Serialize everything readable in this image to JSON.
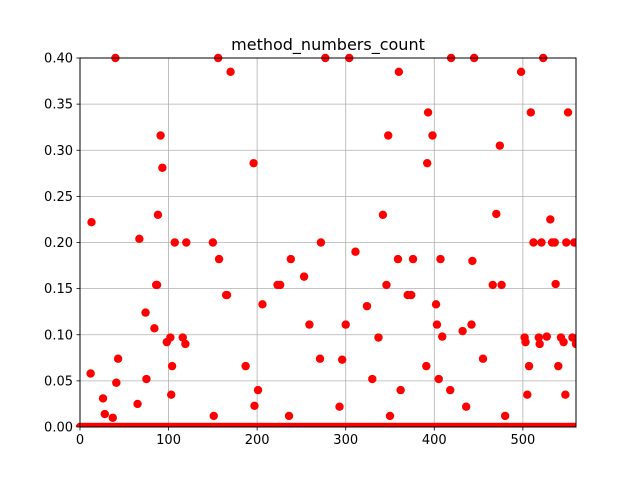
{
  "chart_data": {
    "type": "scatter",
    "title": "method_numbers_count",
    "xlabel": "",
    "ylabel": "",
    "xlim": [
      0,
      560
    ],
    "ylim": [
      0,
      0.4
    ],
    "xticks": [
      0,
      100,
      200,
      300,
      400,
      500
    ],
    "yticks": [
      0.0,
      0.05,
      0.1,
      0.15,
      0.2,
      0.25,
      0.3,
      0.35,
      0.4
    ],
    "xtick_labels": [
      "0",
      "100",
      "200",
      "300",
      "400",
      "500"
    ],
    "ytick_labels": [
      "0.00",
      "0.05",
      "0.10",
      "0.15",
      "0.20",
      "0.25",
      "0.30",
      "0.35",
      "0.40"
    ],
    "grid": true,
    "marker_color": "#ff0000",
    "series": [
      {
        "name": "method_numbers_count",
        "points": [
          [
            12,
            0.058
          ],
          [
            13,
            0.222
          ],
          [
            26,
            0.031
          ],
          [
            28,
            0.014
          ],
          [
            37,
            0.01
          ],
          [
            40,
            0.4
          ],
          [
            41,
            0.048
          ],
          [
            43,
            0.074
          ],
          [
            65,
            0.025
          ],
          [
            67,
            0.204
          ],
          [
            74,
            0.124
          ],
          [
            75,
            0.052
          ],
          [
            84,
            0.107
          ],
          [
            86,
            0.154
          ],
          [
            87,
            0.154
          ],
          [
            88,
            0.23
          ],
          [
            91,
            0.316
          ],
          [
            93,
            0.281
          ],
          [
            98,
            0.092
          ],
          [
            102,
            0.097
          ],
          [
            103,
            0.035
          ],
          [
            104,
            0.066
          ],
          [
            107,
            0.2
          ],
          [
            116,
            0.097
          ],
          [
            119,
            0.09
          ],
          [
            120,
            0.2
          ],
          [
            150,
            0.2
          ],
          [
            151,
            0.012
          ],
          [
            156,
            0.4
          ],
          [
            157,
            0.182
          ],
          [
            165,
            0.143
          ],
          [
            166,
            0.143
          ],
          [
            170,
            0.385
          ],
          [
            187,
            0.066
          ],
          [
            196,
            0.286
          ],
          [
            197,
            0.023
          ],
          [
            201,
            0.04
          ],
          [
            206,
            0.133
          ],
          [
            223,
            0.154
          ],
          [
            226,
            0.154
          ],
          [
            236,
            0.012
          ],
          [
            238,
            0.182
          ],
          [
            253,
            0.163
          ],
          [
            259,
            0.111
          ],
          [
            271,
            0.074
          ],
          [
            272,
            0.2
          ],
          [
            277,
            0.4
          ],
          [
            293,
            0.022
          ],
          [
            296,
            0.073
          ],
          [
            300,
            0.111
          ],
          [
            304,
            0.4
          ],
          [
            311,
            0.19
          ],
          [
            324,
            0.131
          ],
          [
            330,
            0.052
          ],
          [
            337,
            0.097
          ],
          [
            342,
            0.23
          ],
          [
            346,
            0.154
          ],
          [
            348,
            0.316
          ],
          [
            350,
            0.012
          ],
          [
            359,
            0.182
          ],
          [
            360,
            0.385
          ],
          [
            362,
            0.04
          ],
          [
            370,
            0.143
          ],
          [
            374,
            0.143
          ],
          [
            376,
            0.182
          ],
          [
            391,
            0.066
          ],
          [
            392,
            0.286
          ],
          [
            393,
            0.341
          ],
          [
            398,
            0.316
          ],
          [
            402,
            0.133
          ],
          [
            403,
            0.111
          ],
          [
            405,
            0.052
          ],
          [
            407,
            0.182
          ],
          [
            409,
            0.098
          ],
          [
            418,
            0.04
          ],
          [
            419,
            0.4
          ],
          [
            432,
            0.104
          ],
          [
            436,
            0.022
          ],
          [
            442,
            0.111
          ],
          [
            443,
            0.18
          ],
          [
            445,
            0.4
          ],
          [
            455,
            0.074
          ],
          [
            466,
            0.154
          ],
          [
            470,
            0.231
          ],
          [
            474,
            0.305
          ],
          [
            476,
            0.154
          ],
          [
            480,
            0.012
          ],
          [
            498,
            0.385
          ],
          [
            502,
            0.097
          ],
          [
            503,
            0.092
          ],
          [
            505,
            0.035
          ],
          [
            507,
            0.066
          ],
          [
            509,
            0.341
          ],
          [
            512,
            0.2
          ],
          [
            518,
            0.097
          ],
          [
            519,
            0.09
          ],
          [
            521,
            0.2
          ],
          [
            523,
            0.4
          ],
          [
            527,
            0.098
          ],
          [
            531,
            0.225
          ],
          [
            533,
            0.2
          ],
          [
            536,
            0.2
          ],
          [
            537,
            0.155
          ],
          [
            540,
            0.066
          ],
          [
            543,
            0.097
          ],
          [
            546,
            0.092
          ],
          [
            548,
            0.035
          ],
          [
            549,
            0.2
          ],
          [
            551,
            0.341
          ],
          [
            556,
            0.097
          ],
          [
            558,
            0.2
          ],
          [
            560,
            0.09
          ]
        ],
        "zero_baseline_points": {
          "y": 0.0,
          "x_start": 0,
          "x_end": 560,
          "x_step": 2
        }
      }
    ]
  }
}
